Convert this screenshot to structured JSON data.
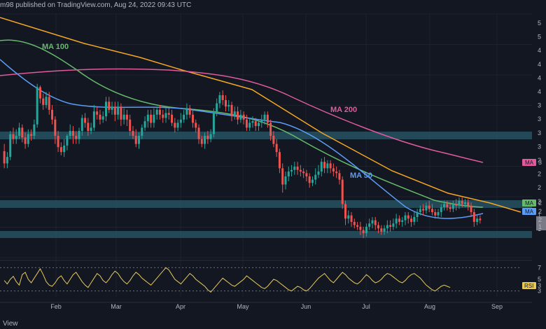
{
  "header": {
    "text": "m98 published on TradingView.com, Aug 24, 2022 09:43 UTC"
  },
  "footer": {
    "brand": "View"
  },
  "colors": {
    "background": "#131722",
    "candle_up": "#26a69a",
    "candle_down": "#ef5350",
    "ma50": "#5b9cf6",
    "ma100": "#66bb6a",
    "ma200": "#e05a9c",
    "trendline": "#f5a623",
    "zone": "#2a5a6a",
    "rsi": "#e6c95a"
  },
  "chart_data": {
    "type": "candlestick",
    "price_axis_labels": [
      "5",
      "5",
      "4",
      "4",
      "4",
      "4",
      "3",
      "3",
      "3",
      "3",
      "2",
      "2",
      "2",
      "2",
      "1",
      "1"
    ],
    "x_tick_labels": [
      "Feb",
      "Mar",
      "Apr",
      "May",
      "Jun",
      "Jul",
      "Aug",
      "Sep"
    ],
    "indicators": [
      {
        "name": "MA 100",
        "color": "#66bb6a"
      },
      {
        "name": "MA 200",
        "color": "#e05a9c"
      },
      {
        "name": "MA 50",
        "color": "#5b9cf6"
      }
    ],
    "right_tags": [
      {
        "label": "MA",
        "value": "3",
        "color": "#e05a9c"
      },
      {
        "label": "MA",
        "value": "2",
        "color": "#66bb6a"
      },
      {
        "label": "MA",
        "value": "2",
        "color": "#5b9cf6"
      },
      {
        "label": "",
        "value": "2",
        "color": "#787b86"
      },
      {
        "label": "",
        "value": "1",
        "color": "#787b86"
      }
    ],
    "rsi": {
      "label": "RSI",
      "value": "3",
      "axis_labels": [
        "7",
        "5",
        "3"
      ]
    },
    "candles": [
      [
        131,
        116,
        140,
        110
      ],
      [
        116,
        124,
        130,
        110
      ],
      [
        124,
        152,
        156,
        120
      ],
      [
        152,
        146,
        160,
        140
      ],
      [
        146,
        150,
        158,
        140
      ],
      [
        150,
        160,
        166,
        146
      ],
      [
        160,
        148,
        164,
        142
      ],
      [
        148,
        140,
        154,
        134
      ],
      [
        140,
        152,
        158,
        136
      ],
      [
        152,
        150,
        158,
        144
      ],
      [
        150,
        164,
        170,
        146
      ],
      [
        164,
        210,
        214,
        160
      ],
      [
        210,
        196,
        212,
        190
      ],
      [
        196,
        188,
        202,
        182
      ],
      [
        188,
        198,
        204,
        184
      ],
      [
        198,
        182,
        204,
        176
      ],
      [
        182,
        170,
        188,
        164
      ],
      [
        170,
        150,
        174,
        140
      ],
      [
        150,
        136,
        156,
        130
      ],
      [
        136,
        130,
        142,
        126
      ],
      [
        130,
        138,
        146,
        124
      ],
      [
        138,
        150,
        152,
        132
      ],
      [
        150,
        156,
        164,
        146
      ],
      [
        156,
        150,
        162,
        140
      ],
      [
        150,
        146,
        156,
        140
      ],
      [
        146,
        156,
        160,
        140
      ],
      [
        156,
        172,
        176,
        150
      ],
      [
        172,
        166,
        178,
        160
      ],
      [
        166,
        156,
        172,
        150
      ],
      [
        156,
        160,
        166,
        152
      ],
      [
        160,
        180,
        188,
        156
      ],
      [
        180,
        176,
        186,
        170
      ],
      [
        176,
        170,
        182,
        164
      ],
      [
        170,
        174,
        180,
        166
      ],
      [
        174,
        192,
        198,
        168
      ],
      [
        192,
        182,
        198,
        178
      ],
      [
        182,
        186,
        192,
        176
      ],
      [
        186,
        176,
        192,
        168
      ],
      [
        176,
        186,
        192,
        170
      ],
      [
        186,
        170,
        190,
        162
      ],
      [
        170,
        176,
        184,
        164
      ],
      [
        176,
        170,
        182,
        162
      ],
      [
        170,
        156,
        176,
        150
      ],
      [
        156,
        150,
        162,
        146
      ],
      [
        150,
        140,
        158,
        136
      ],
      [
        140,
        150,
        154,
        134
      ],
      [
        150,
        160,
        164,
        146
      ],
      [
        160,
        168,
        174,
        156
      ],
      [
        168,
        176,
        182,
        160
      ],
      [
        176,
        166,
        182,
        160
      ],
      [
        166,
        176,
        184,
        160
      ],
      [
        176,
        182,
        186,
        170
      ],
      [
        182,
        176,
        188,
        170
      ],
      [
        176,
        172,
        182,
        166
      ],
      [
        172,
        178,
        184,
        166
      ],
      [
        178,
        176,
        184,
        170
      ],
      [
        176,
        166,
        182,
        162
      ],
      [
        166,
        160,
        172,
        154
      ],
      [
        160,
        166,
        170,
        156
      ],
      [
        166,
        170,
        178,
        160
      ],
      [
        170,
        176,
        182,
        166
      ],
      [
        176,
        184,
        190,
        170
      ],
      [
        184,
        176,
        188,
        172
      ],
      [
        176,
        166,
        182,
        160
      ],
      [
        166,
        160,
        170,
        154
      ],
      [
        160,
        146,
        164,
        140
      ],
      [
        146,
        140,
        150,
        136
      ],
      [
        140,
        150,
        154,
        134
      ],
      [
        150,
        146,
        156,
        140
      ],
      [
        146,
        152,
        158,
        142
      ],
      [
        152,
        180,
        184,
        148
      ],
      [
        180,
        190,
        196,
        174
      ],
      [
        190,
        200,
        204,
        184
      ],
      [
        200,
        194,
        206,
        188
      ],
      [
        194,
        186,
        200,
        180
      ],
      [
        186,
        188,
        194,
        180
      ],
      [
        188,
        174,
        192,
        168
      ],
      [
        174,
        180,
        186,
        170
      ],
      [
        180,
        170,
        186,
        164
      ],
      [
        170,
        176,
        182,
        166
      ],
      [
        176,
        170,
        180,
        164
      ],
      [
        170,
        160,
        176,
        156
      ],
      [
        160,
        166,
        172,
        156
      ],
      [
        166,
        168,
        174,
        160
      ],
      [
        168,
        162,
        172,
        156
      ],
      [
        162,
        166,
        170,
        156
      ],
      [
        166,
        170,
        176,
        160
      ],
      [
        170,
        176,
        180,
        164
      ],
      [
        176,
        166,
        180,
        160
      ],
      [
        166,
        150,
        170,
        144
      ],
      [
        150,
        140,
        156,
        136
      ],
      [
        140,
        130,
        146,
        124
      ],
      [
        130,
        110,
        134,
        104
      ],
      [
        110,
        90,
        116,
        80
      ],
      [
        90,
        100,
        106,
        84
      ],
      [
        100,
        106,
        112,
        94
      ],
      [
        106,
        108,
        114,
        100
      ],
      [
        108,
        112,
        118,
        102
      ],
      [
        112,
        108,
        118,
        102
      ],
      [
        108,
        106,
        114,
        100
      ],
      [
        106,
        104,
        110,
        98
      ],
      [
        104,
        100,
        108,
        94
      ],
      [
        100,
        92,
        104,
        86
      ],
      [
        92,
        96,
        100,
        88
      ],
      [
        96,
        102,
        110,
        90
      ],
      [
        102,
        106,
        114,
        98
      ],
      [
        106,
        118,
        122,
        100
      ],
      [
        118,
        110,
        124,
        104
      ],
      [
        110,
        116,
        120,
        104
      ],
      [
        116,
        110,
        120,
        104
      ],
      [
        110,
        106,
        116,
        100
      ],
      [
        106,
        104,
        112,
        98
      ],
      [
        104,
        96,
        108,
        90
      ],
      [
        96,
        66,
        100,
        60
      ],
      [
        66,
        48,
        70,
        40
      ],
      [
        48,
        52,
        58,
        42
      ],
      [
        52,
        44,
        56,
        38
      ],
      [
        44,
        40,
        48,
        36
      ],
      [
        40,
        38,
        44,
        34
      ],
      [
        38,
        34,
        44,
        28
      ],
      [
        34,
        30,
        38,
        24
      ],
      [
        30,
        38,
        42,
        26
      ],
      [
        38,
        42,
        48,
        34
      ],
      [
        42,
        46,
        50,
        36
      ],
      [
        46,
        40,
        50,
        34
      ],
      [
        40,
        36,
        44,
        30
      ],
      [
        36,
        32,
        40,
        28
      ],
      [
        32,
        36,
        40,
        28
      ],
      [
        36,
        40,
        46,
        30
      ],
      [
        40,
        38,
        46,
        32
      ],
      [
        38,
        42,
        48,
        34
      ],
      [
        42,
        48,
        54,
        36
      ],
      [
        48,
        44,
        52,
        40
      ],
      [
        44,
        46,
        50,
        38
      ],
      [
        46,
        52,
        56,
        40
      ],
      [
        52,
        48,
        56,
        42
      ],
      [
        48,
        44,
        52,
        38
      ],
      [
        44,
        50,
        56,
        40
      ],
      [
        50,
        56,
        60,
        44
      ],
      [
        56,
        60,
        64,
        52
      ],
      [
        60,
        58,
        66,
        52
      ],
      [
        58,
        64,
        68,
        54
      ],
      [
        64,
        60,
        70,
        56
      ],
      [
        60,
        56,
        66,
        52
      ],
      [
        56,
        52,
        60,
        48
      ],
      [
        52,
        56,
        60,
        48
      ],
      [
        56,
        62,
        66,
        50
      ],
      [
        62,
        66,
        70,
        58
      ],
      [
        66,
        62,
        70,
        58
      ],
      [
        62,
        60,
        68,
        56
      ],
      [
        60,
        66,
        70,
        56
      ],
      [
        66,
        64,
        72,
        58
      ],
      [
        64,
        70,
        74,
        60
      ],
      [
        70,
        66,
        74,
        62
      ],
      [
        66,
        68,
        72,
        62
      ],
      [
        68,
        64,
        72,
        58
      ],
      [
        64,
        56,
        68,
        50
      ],
      [
        56,
        44,
        60,
        38
      ],
      [
        44,
        48,
        52,
        40
      ],
      [
        48,
        46,
        52,
        42
      ]
    ],
    "rsi_values": [
      48,
      42,
      50,
      55,
      46,
      40,
      58,
      62,
      50,
      44,
      52,
      60,
      68,
      58,
      46,
      40,
      38,
      44,
      52,
      56,
      48,
      42,
      50,
      58,
      62,
      54,
      46,
      40,
      36,
      44,
      52,
      60,
      56,
      48,
      44,
      50,
      58,
      64,
      60,
      52,
      46,
      42,
      48,
      56,
      62,
      58,
      52,
      48,
      44,
      40,
      46,
      52,
      58,
      64,
      70,
      66,
      58,
      50,
      46,
      42,
      48,
      54,
      60,
      56,
      50,
      46,
      42,
      38,
      32,
      28,
      34,
      40,
      46,
      52,
      48,
      44,
      40,
      38,
      42,
      46,
      50,
      56,
      52,
      48,
      44,
      40,
      36,
      34,
      38,
      44,
      50,
      48,
      44,
      40,
      36,
      32,
      30,
      34,
      38,
      36,
      32,
      30,
      34,
      40,
      46,
      52,
      56,
      60,
      54,
      48,
      44,
      50,
      56,
      62,
      58,
      52,
      48,
      44,
      42,
      46,
      52,
      58,
      54,
      48,
      44,
      46,
      50,
      56,
      60,
      58,
      54,
      50,
      46,
      44,
      48,
      54,
      58,
      60,
      56,
      52,
      46,
      40,
      36,
      32,
      30,
      34,
      38,
      40,
      38,
      36
    ]
  }
}
